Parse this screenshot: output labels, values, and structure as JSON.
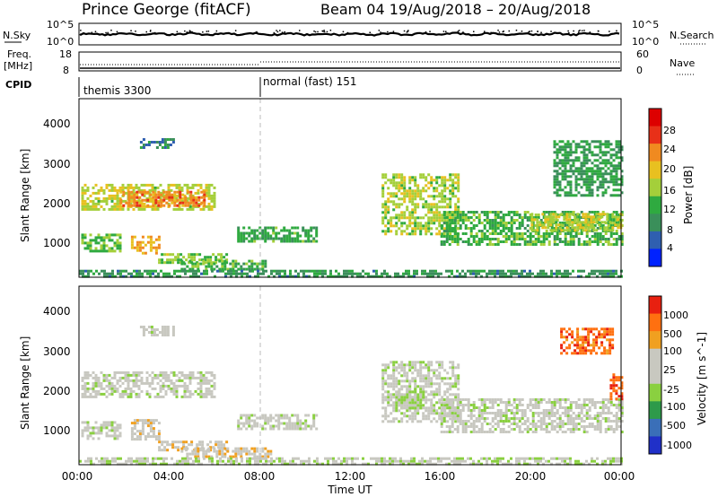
{
  "header": {
    "station": "Prince George (fitACF)",
    "beam_info": "Beam 04  19/Aug/2018 – 20/Aug/2018"
  },
  "noise_panel": {
    "left_label": "N.Sky",
    "left_ticks": [
      "10^5",
      "10^0"
    ],
    "right_label": "N.Search",
    "right_ticks": [
      "10^5",
      "10^0"
    ]
  },
  "freq_panel": {
    "left_label_1": "Freq.",
    "left_label_2": "[MHz]",
    "left_ticks": [
      "18",
      "8"
    ],
    "right_label": "Nave",
    "right_ticks": [
      "60",
      "0"
    ]
  },
  "cpid": {
    "label": "CPID",
    "segments": [
      {
        "name": "themis 3300",
        "start_hour": 0
      },
      {
        "name": "normal (fast) 151",
        "start_hour": 8
      }
    ]
  },
  "colors": {
    "power": [
      "#0022ff",
      "#2f5fb0",
      "#3a8f5a",
      "#2faa40",
      "#a4cf3a",
      "#e8c020",
      "#f08a20",
      "#e83018",
      "#dd0000"
    ],
    "velocity": [
      "#e82010",
      "#ff7010",
      "#f0a020",
      "#c8c8c0",
      "#c8c8c0",
      "#8ad040",
      "#2e9a4a",
      "#3a6fb8",
      "#2030c8"
    ]
  },
  "chart_data": [
    {
      "type": "heatmap",
      "name": "power",
      "ylabel": "Slant Range [km]",
      "xlim": [
        0,
        24
      ],
      "ylim": [
        200,
        4500
      ],
      "yticks": [
        "1000",
        "2000",
        "3000",
        "4000"
      ],
      "colorbar_label": "Power [dB]",
      "colorbar_ticks": [
        "4",
        "8",
        "12",
        "16",
        "20",
        "24",
        "28"
      ],
      "range": [
        0,
        30
      ],
      "patches": [
        {
          "t0": 0.1,
          "t1": 6.0,
          "r0": 1830,
          "r1": 2450,
          "v": 16
        },
        {
          "t0": 1.8,
          "t1": 5.6,
          "r0": 1950,
          "r1": 2280,
          "v": 22
        },
        {
          "t0": 0.1,
          "t1": 1.8,
          "r0": 850,
          "r1": 1250,
          "v": 13
        },
        {
          "t0": 2.3,
          "t1": 3.6,
          "r0": 800,
          "r1": 1200,
          "v": 20
        },
        {
          "t0": 3.5,
          "t1": 6.5,
          "r0": 560,
          "r1": 780,
          "v": 14
        },
        {
          "t0": 4.5,
          "t1": 8.5,
          "r0": 380,
          "r1": 620,
          "v": 12
        },
        {
          "t0": 7.0,
          "t1": 10.5,
          "r0": 1060,
          "r1": 1420,
          "v": 11
        },
        {
          "t0": 13.4,
          "t1": 16.8,
          "r0": 1250,
          "r1": 2700,
          "v": 15
        },
        {
          "t0": 16.0,
          "t1": 24.0,
          "r0": 1000,
          "r1": 1800,
          "v": 12
        },
        {
          "t0": 20.0,
          "t1": 24.0,
          "r0": 1350,
          "r1": 1750,
          "v": 16
        },
        {
          "t0": 21.0,
          "t1": 24.0,
          "r0": 2200,
          "r1": 3500,
          "v": 10
        },
        {
          "t0": 2.7,
          "t1": 4.2,
          "r0": 3350,
          "r1": 3550,
          "v": 8
        },
        {
          "t0": 0.0,
          "t1": 24.0,
          "r0": 200,
          "r1": 380,
          "v": 9
        }
      ]
    },
    {
      "type": "heatmap",
      "name": "velocity",
      "ylabel": "Slant Range [km]",
      "xlim": [
        0,
        24
      ],
      "ylim": [
        200,
        4500
      ],
      "yticks": [
        "1000",
        "2000",
        "3000",
        "4000"
      ],
      "colorbar_label": "Velocity [m s^-1]",
      "colorbar_ticks": [
        "-1000",
        "-500",
        "-100",
        "-25",
        "25",
        "100",
        "500",
        "1000"
      ],
      "range": [
        -1200,
        1200
      ],
      "patches": [
        {
          "t0": 0.1,
          "t1": 6.0,
          "r0": 1830,
          "r1": 2450,
          "v": 0
        },
        {
          "t0": 0.1,
          "t1": 1.8,
          "r0": 850,
          "r1": 1250,
          "v": 0
        },
        {
          "t0": 2.3,
          "t1": 3.6,
          "r0": 800,
          "r1": 1300,
          "v": -300
        },
        {
          "t0": 3.5,
          "t1": 6.5,
          "r0": 560,
          "r1": 780,
          "v": -250
        },
        {
          "t0": 4.5,
          "t1": 8.5,
          "r0": 380,
          "r1": 620,
          "v": -300
        },
        {
          "t0": 7.0,
          "t1": 10.5,
          "r0": 1060,
          "r1": 1420,
          "v": 0
        },
        {
          "t0": 13.4,
          "t1": 16.8,
          "r0": 1250,
          "r1": 2700,
          "v": 0
        },
        {
          "t0": 14.0,
          "t1": 15.2,
          "r0": 1550,
          "r1": 2050,
          "v": 150
        },
        {
          "t0": 16.0,
          "t1": 24.0,
          "r0": 1000,
          "r1": 1800,
          "v": 0
        },
        {
          "t0": 21.3,
          "t1": 23.6,
          "r0": 2900,
          "r1": 3500,
          "v": -800
        },
        {
          "t0": 23.5,
          "t1": 24.0,
          "r0": 1800,
          "r1": 2400,
          "v": -900
        },
        {
          "t0": 2.7,
          "t1": 4.2,
          "r0": 3350,
          "r1": 3550,
          "v": 0
        },
        {
          "t0": 0.0,
          "t1": 24.0,
          "r0": 200,
          "r1": 380,
          "v": 60
        }
      ]
    }
  ],
  "x_axis": {
    "label": "Time UT",
    "ticks": [
      "00:00",
      "04:00",
      "08:00",
      "12:00",
      "16:00",
      "20:00",
      "00:00"
    ]
  }
}
